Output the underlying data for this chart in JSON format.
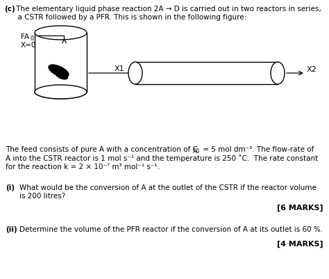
{
  "title_bold": "(c)",
  "title_rest1": " The elementary liquid phase reaction 2A → D is carried out in two reactors in series,",
  "title_line2": "      a CSTR followed by a PFR. This is shown in the following figure:",
  "fa0_label": "FA",
  "fa0_sub": "0",
  "x0_label": "X=0",
  "x1_label": "X1",
  "x2_label": "X2",
  "desc_line1": "The feed consists of pure A with a concentration of C",
  "desc_ca0": "A0",
  "desc_line1b": " = 5 mol dm⁻³. The flow-rate of",
  "desc_line2": "A into the CSTR reactor is 1 mol s⁻¹ and the temperature is 250 ˚C.  The rate constant",
  "desc_line3": "for the reaction k = 2 × 10⁻⁷ m³ mol⁻¹ s⁻¹.",
  "q1_label": "(i)",
  "q1_text": "What would be the conversion of A at the outlet of the CSTR if the reactor volume",
  "q1_text2": "is 200 litres?",
  "q1_marks": "[6 MARKS]",
  "q2_label": "(ii)",
  "q2_text": "Determine the volume of the PFR reactor if the conversion of A at its outlet is 60 %.",
  "q2_marks": "[4 MARKS]",
  "bg_color": "#ffffff",
  "text_color": "#000000"
}
